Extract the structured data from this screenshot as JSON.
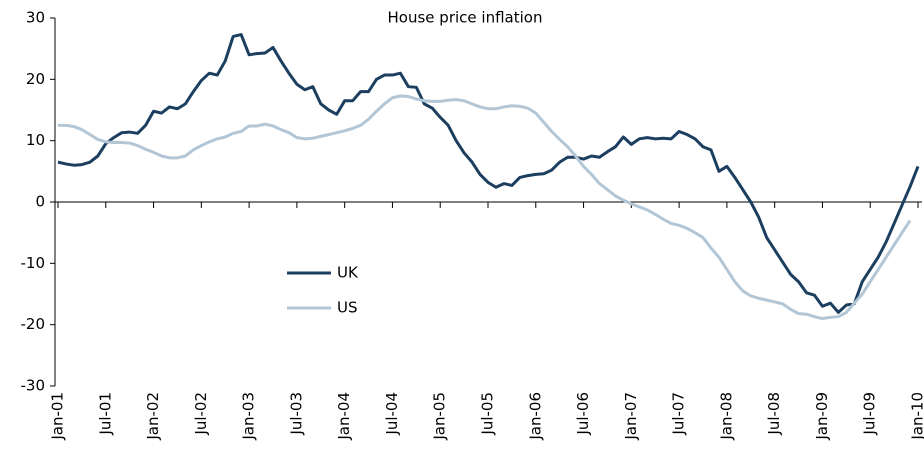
{
  "chart_data": {
    "type": "line",
    "title": "House price inflation",
    "categories": [
      "Jan-01",
      null,
      null,
      null,
      null,
      null,
      "Jul-01",
      null,
      null,
      null,
      null,
      null,
      "Jan-02",
      null,
      null,
      null,
      null,
      null,
      "Jul-02",
      null,
      null,
      null,
      null,
      null,
      "Jan-03",
      null,
      null,
      null,
      null,
      null,
      "Jul-03",
      null,
      null,
      null,
      null,
      null,
      "Jan-04",
      null,
      null,
      null,
      null,
      null,
      "Jul-04",
      null,
      null,
      null,
      null,
      null,
      "Jan-05",
      null,
      null,
      null,
      null,
      null,
      "Jul-05",
      null,
      null,
      null,
      null,
      null,
      "Jan-06",
      null,
      null,
      null,
      null,
      null,
      "Jul-06",
      null,
      null,
      null,
      null,
      null,
      "Jan-07",
      null,
      null,
      null,
      null,
      null,
      "Jul-07",
      null,
      null,
      null,
      null,
      null,
      "Jan-08",
      null,
      null,
      null,
      null,
      null,
      "Jul-08",
      null,
      null,
      null,
      null,
      null,
      "Jan-09",
      null,
      null,
      null,
      null,
      null,
      "Jul-09",
      null,
      null,
      null,
      null,
      null,
      "Jan-10"
    ],
    "series": [
      {
        "name": "UK",
        "color": "#1c3f60",
        "values": [
          6.5,
          6.2,
          6.0,
          6.1,
          6.5,
          7.5,
          9.5,
          10.5,
          11.3,
          11.4,
          11.2,
          12.5,
          14.8,
          14.5,
          15.5,
          15.2,
          16,
          18,
          19.8,
          21,
          20.7,
          23,
          27,
          27.3,
          24,
          24.2,
          24.3,
          25.2,
          23,
          21,
          19.2,
          18.3,
          18.8,
          16,
          15,
          14.3,
          16.5,
          16.5,
          18,
          18,
          20,
          20.7,
          20.7,
          21,
          18.8,
          18.7,
          16,
          15.3,
          13.8,
          12.5,
          10,
          8,
          6.5,
          4.5,
          3.2,
          2.4,
          3,
          2.7,
          4,
          4.3,
          4.5,
          4.6,
          5.2,
          6.5,
          7.3,
          7.3,
          7.0,
          7.5,
          7.3,
          8.2,
          9,
          10.6,
          9.4,
          10.3,
          10.5,
          10.3,
          10.4,
          10.3,
          11.5,
          11,
          10.3,
          9,
          8.5,
          5,
          5.8,
          4,
          2,
          0,
          -2.5,
          -5.8,
          -7.8,
          -9.8,
          -11.8,
          -13,
          -14.8,
          -15.2,
          -17,
          -16.5,
          -18,
          -16.8,
          -16.6,
          -13,
          -11,
          -9,
          -6.5,
          -3.5,
          -0.5,
          2.5,
          5.8
        ]
      },
      {
        "name": "US",
        "color": "#b3c6d6",
        "values": [
          12.5,
          12.5,
          12.3,
          11.8,
          11,
          10.2,
          9.8,
          9.7,
          9.7,
          9.6,
          9.2,
          8.6,
          8.1,
          7.5,
          7.2,
          7.2,
          7.5,
          8.5,
          9.2,
          9.8,
          10.3,
          10.6,
          11.2,
          11.5,
          12.4,
          12.4,
          12.7,
          12.4,
          11.8,
          11.3,
          10.5,
          10.3,
          10.4,
          10.7,
          11,
          11.3,
          11.6,
          12,
          12.5,
          13.5,
          14.8,
          16,
          17,
          17.3,
          17.2,
          16.8,
          16.5,
          16.4,
          16.4,
          16.6,
          16.7,
          16.5,
          16,
          15.5,
          15.2,
          15.2,
          15.5,
          15.7,
          15.6,
          15.3,
          14.5,
          13,
          11.5,
          10.2,
          9,
          7.5,
          5.8,
          4.5,
          3,
          2,
          1,
          0.3,
          -0.3,
          -0.8,
          -1.3,
          -2,
          -2.8,
          -3.5,
          -3.8,
          -4.3,
          -5,
          -5.8,
          -7.5,
          -9,
          -11,
          -13,
          -14.5,
          -15.3,
          -15.7,
          -16,
          -16.3,
          -16.6,
          -17.5,
          -18.2,
          -18.3,
          -18.7,
          -19,
          -18.8,
          -18.7,
          -18,
          -16.5,
          -15,
          -13,
          -11,
          -9,
          -7,
          -5,
          -3,
          null
        ]
      }
    ],
    "ylim": [
      -30,
      30
    ],
    "yticks": [
      -30,
      -20,
      -10,
      0,
      10,
      20,
      30
    ]
  }
}
